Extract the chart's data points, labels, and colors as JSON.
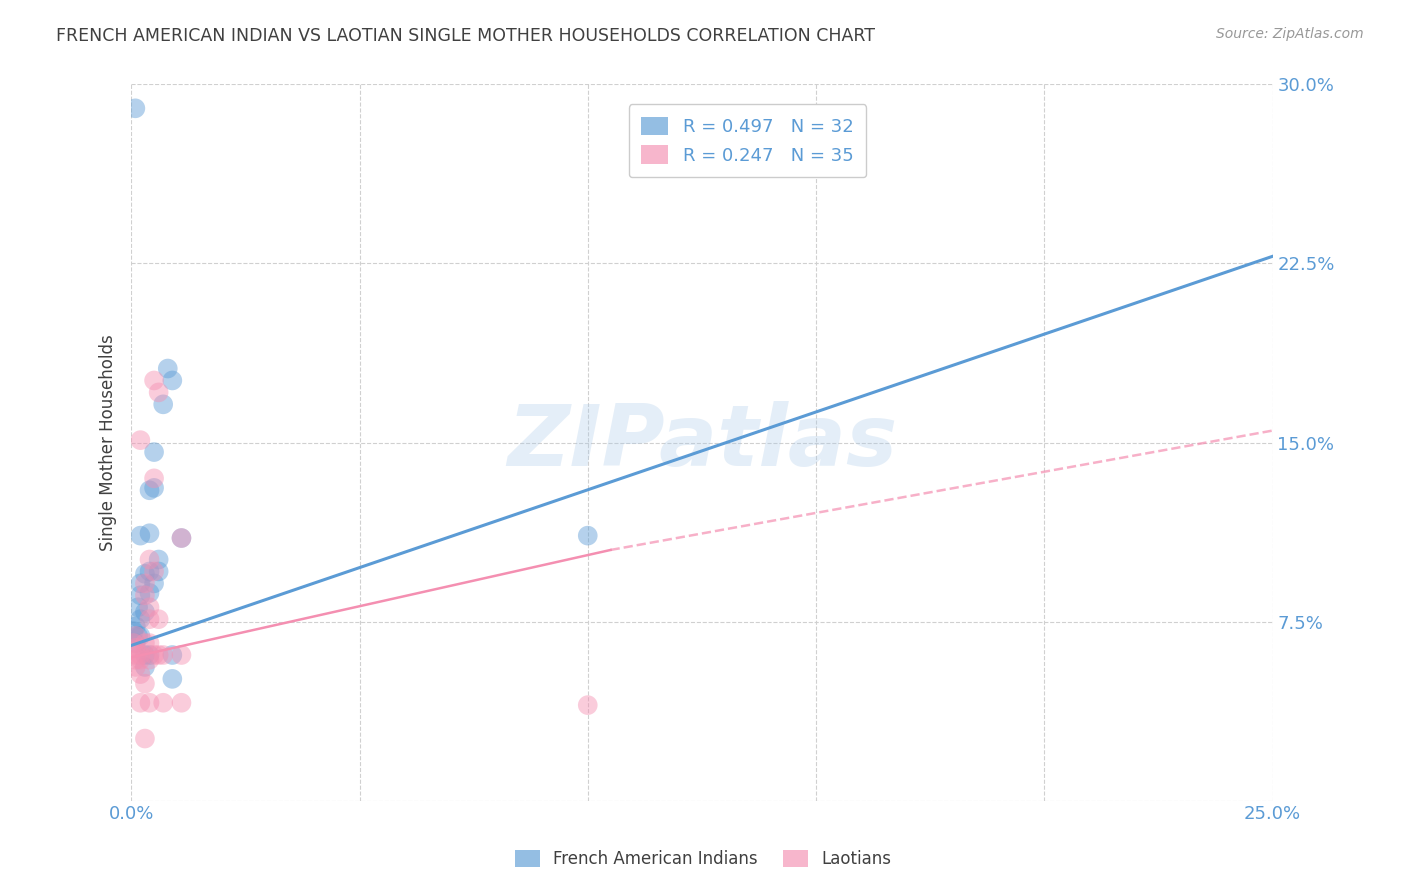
{
  "title": "FRENCH AMERICAN INDIAN VS LAOTIAN SINGLE MOTHER HOUSEHOLDS CORRELATION CHART",
  "source": "Source: ZipAtlas.com",
  "ylabel": "Single Mother Households",
  "xlabel": "",
  "xlim": [
    0.0,
    0.25
  ],
  "ylim": [
    0.0,
    0.3
  ],
  "xticks": [
    0.0,
    0.05,
    0.1,
    0.15,
    0.2,
    0.25
  ],
  "yticks": [
    0.0,
    0.075,
    0.15,
    0.225,
    0.3
  ],
  "xtick_labels": [
    "0.0%",
    "",
    "",
    "",
    "",
    "25.0%"
  ],
  "ytick_labels": [
    "",
    "7.5%",
    "15.0%",
    "22.5%",
    "30.0%"
  ],
  "legend_entries": [
    {
      "label": "R = 0.497   N = 32",
      "color": "#6baed6"
    },
    {
      "label": "R = 0.247   N = 35",
      "color": "#f4a0b5"
    }
  ],
  "legend_bottom": [
    {
      "label": "French American Indians",
      "color": "#6baed6"
    },
    {
      "label": "Laotians",
      "color": "#f4a0b5"
    }
  ],
  "blue_scatter": [
    [
      0.0005,
      0.071
    ],
    [
      0.001,
      0.073
    ],
    [
      0.001,
      0.066
    ],
    [
      0.0015,
      0.069
    ],
    [
      0.0015,
      0.081
    ],
    [
      0.002,
      0.076
    ],
    [
      0.002,
      0.091
    ],
    [
      0.002,
      0.086
    ],
    [
      0.002,
      0.111
    ],
    [
      0.002,
      0.069
    ],
    [
      0.003,
      0.095
    ],
    [
      0.003,
      0.079
    ],
    [
      0.003,
      0.061
    ],
    [
      0.003,
      0.056
    ],
    [
      0.004,
      0.13
    ],
    [
      0.004,
      0.112
    ],
    [
      0.004,
      0.087
    ],
    [
      0.004,
      0.096
    ],
    [
      0.004,
      0.061
    ],
    [
      0.005,
      0.091
    ],
    [
      0.005,
      0.146
    ],
    [
      0.005,
      0.131
    ],
    [
      0.006,
      0.096
    ],
    [
      0.006,
      0.101
    ],
    [
      0.007,
      0.166
    ],
    [
      0.008,
      0.181
    ],
    [
      0.009,
      0.176
    ],
    [
      0.009,
      0.051
    ],
    [
      0.009,
      0.061
    ],
    [
      0.011,
      0.11
    ],
    [
      0.1,
      0.111
    ],
    [
      0.0009,
      0.29
    ]
  ],
  "pink_scatter": [
    [
      0.0005,
      0.066
    ],
    [
      0.001,
      0.061
    ],
    [
      0.001,
      0.056
    ],
    [
      0.001,
      0.064
    ],
    [
      0.001,
      0.069
    ],
    [
      0.001,
      0.059
    ],
    [
      0.002,
      0.059
    ],
    [
      0.002,
      0.061
    ],
    [
      0.002,
      0.053
    ],
    [
      0.002,
      0.041
    ],
    [
      0.002,
      0.151
    ],
    [
      0.003,
      0.066
    ],
    [
      0.003,
      0.049
    ],
    [
      0.003,
      0.086
    ],
    [
      0.003,
      0.091
    ],
    [
      0.003,
      0.026
    ],
    [
      0.004,
      0.101
    ],
    [
      0.004,
      0.076
    ],
    [
      0.004,
      0.066
    ],
    [
      0.004,
      0.081
    ],
    [
      0.004,
      0.059
    ],
    [
      0.004,
      0.041
    ],
    [
      0.005,
      0.135
    ],
    [
      0.005,
      0.096
    ],
    [
      0.005,
      0.061
    ],
    [
      0.005,
      0.176
    ],
    [
      0.006,
      0.171
    ],
    [
      0.006,
      0.076
    ],
    [
      0.006,
      0.061
    ],
    [
      0.007,
      0.041
    ],
    [
      0.007,
      0.061
    ],
    [
      0.011,
      0.11
    ],
    [
      0.011,
      0.061
    ],
    [
      0.011,
      0.041
    ],
    [
      0.1,
      0.04
    ]
  ],
  "blue_line_solid": [
    [
      0.0,
      0.065
    ],
    [
      0.25,
      0.228
    ]
  ],
  "pink_line_solid": [
    [
      0.0,
      0.06
    ],
    [
      0.105,
      0.105
    ]
  ],
  "pink_line_dashed": [
    [
      0.105,
      0.105
    ],
    [
      0.25,
      0.155
    ]
  ],
  "watermark": "ZIPatlas",
  "background_color": "#ffffff",
  "grid_color": "#d0d0d0",
  "title_color": "#404040",
  "blue_color": "#5b9bd5",
  "pink_color": "#f48fb1",
  "tick_color": "#5b9bd5"
}
